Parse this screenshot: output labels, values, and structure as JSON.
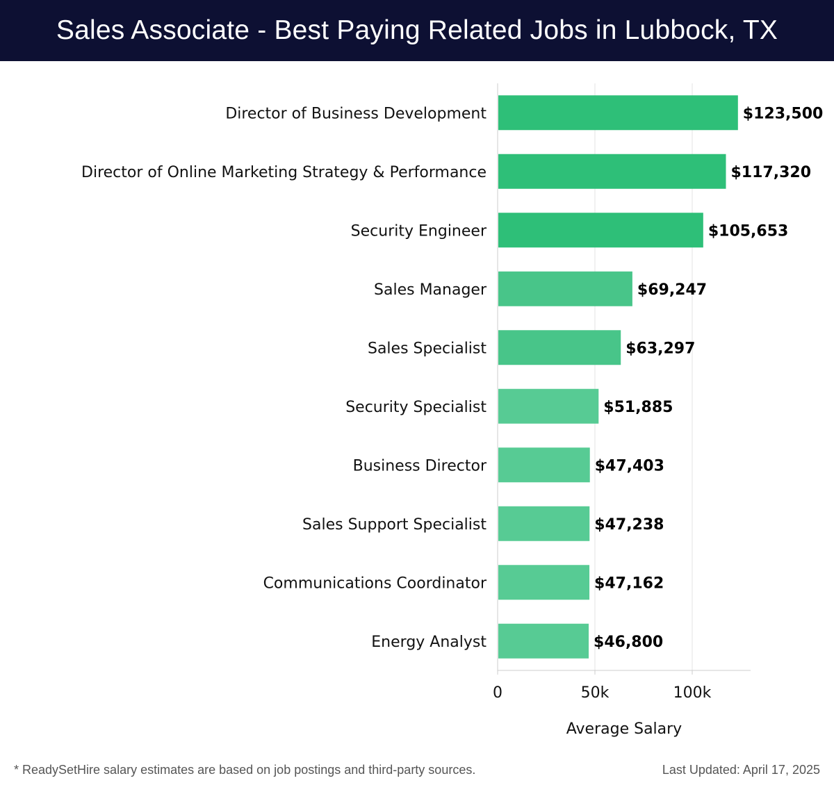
{
  "header": {
    "title": "Sales Associate - Best Paying Related Jobs in Lubbock, TX"
  },
  "chart_data": {
    "type": "bar",
    "orientation": "horizontal",
    "title": "Sales Associate - Best Paying Related Jobs in Lubbock, TX",
    "xlabel": "Average Salary",
    "ylabel": "",
    "xlim": [
      0,
      130000
    ],
    "x_ticks": [
      {
        "value": 0,
        "label": "0"
      },
      {
        "value": 50000,
        "label": "50k"
      },
      {
        "value": 100000,
        "label": "100k"
      }
    ],
    "grid": "vertical",
    "categories": [
      "Director of Business Development",
      "Director of Online Marketing Strategy & Performance",
      "Security Engineer",
      "Sales Manager",
      "Sales Specialist",
      "Security Specialist",
      "Business Director",
      "Sales Support Specialist",
      "Communications Coordinator",
      "Energy Analyst"
    ],
    "values": [
      123500,
      117320,
      105653,
      69247,
      63297,
      51885,
      47403,
      47238,
      47162,
      46800
    ],
    "value_labels": [
      "$123,500",
      "$117,320",
      "$105,653",
      "$69,247",
      "$63,297",
      "$51,885",
      "$47,403",
      "$47,238",
      "$47,162",
      "$46,800"
    ],
    "colors": {
      "high": "#2ebf78",
      "mid": "#48c589",
      "low": "#57cb94",
      "grid": "#e3e3e3",
      "axis": "#cccccc"
    }
  },
  "footer": {
    "note": "* ReadySetHire salary estimates are based on job postings and third-party sources.",
    "updated": "Last Updated: April 17, 2025"
  }
}
